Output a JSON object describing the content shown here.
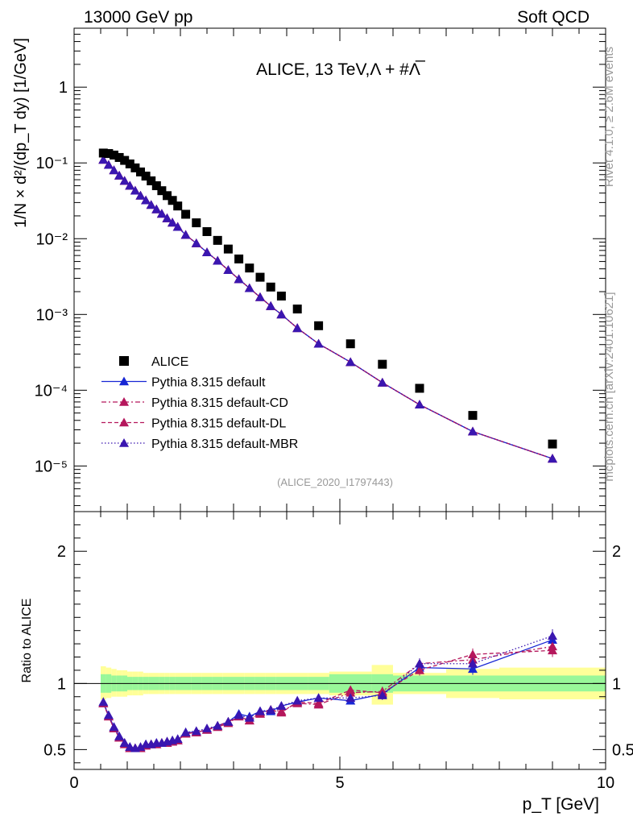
{
  "header": {
    "left": "13000 GeV pp",
    "right": "Soft QCD"
  },
  "chart_data": [
    {
      "type": "scatter",
      "title": "ALICE, 13 TeV,Λ + #Λ̅",
      "xlabel": "p_T [GeV]",
      "ylabel": "1/N × d²/(dp_T dy) [1/GeV]",
      "yscale": "log",
      "xlim": [
        0,
        10
      ],
      "ylim": [
        2.5e-06,
        6
      ],
      "ytick_labels": [
        "10⁻⁵",
        "10⁻⁴",
        "10⁻³",
        "10⁻²",
        "10⁻¹",
        "1"
      ],
      "ytick_values": [
        1e-05,
        0.0001,
        0.001,
        0.01,
        0.1,
        1
      ],
      "x": [
        0.55,
        0.65,
        0.75,
        0.85,
        0.95,
        1.05,
        1.15,
        1.25,
        1.35,
        1.45,
        1.55,
        1.65,
        1.75,
        1.85,
        1.95,
        2.1,
        2.3,
        2.5,
        2.7,
        2.9,
        3.1,
        3.3,
        3.5,
        3.7,
        3.9,
        4.2,
        4.6,
        5.2,
        5.8,
        6.5,
        7.5,
        9.0
      ],
      "series": [
        {
          "name": "ALICE",
          "style": "data",
          "color": "#000000",
          "values": [
            0.135,
            0.133,
            0.127,
            0.118,
            0.108,
            0.097,
            0.086,
            0.076,
            0.067,
            0.058,
            0.05,
            0.043,
            0.037,
            0.032,
            0.027,
            0.021,
            0.0162,
            0.0124,
            0.0095,
            0.0073,
            0.0054,
            0.0041,
            0.0031,
            0.0023,
            0.00175,
            0.00118,
            0.00071,
            0.00041,
            0.00022,
            0.000106,
            4.65e-05,
            1.95e-05
          ]
        },
        {
          "name": "Pythia 8.315 default",
          "style": "solid",
          "color": "#1726d4",
          "values": [
            0.11,
            0.094,
            0.08,
            0.068,
            0.058,
            0.05,
            0.043,
            0.037,
            0.032,
            0.0279,
            0.0244,
            0.0213,
            0.0186,
            0.0163,
            0.0143,
            0.0112,
            0.0087,
            0.0066,
            0.0051,
            0.00385,
            0.00292,
            0.00222,
            0.00169,
            0.00129,
            0.001,
            0.00066,
            0.00041,
            0.000235,
            0.000126,
            6.45e-05,
            2.85e-05,
            1.25e-05
          ]
        },
        {
          "name": "Pythia 8.315 default-CD",
          "style": "dashdot",
          "color": "#b5175c",
          "values": [
            0.11,
            0.094,
            0.08,
            0.068,
            0.058,
            0.05,
            0.043,
            0.037,
            0.032,
            0.0279,
            0.0244,
            0.0213,
            0.0186,
            0.0163,
            0.0143,
            0.0112,
            0.0087,
            0.0066,
            0.0051,
            0.00385,
            0.00292,
            0.00222,
            0.00169,
            0.00129,
            0.001,
            0.00066,
            0.00041,
            0.000235,
            0.000126,
            6.45e-05,
            2.85e-05,
            1.25e-05
          ]
        },
        {
          "name": "Pythia 8.315 default-DL",
          "style": "dashed",
          "color": "#b5175c",
          "values": [
            0.11,
            0.094,
            0.08,
            0.068,
            0.058,
            0.05,
            0.043,
            0.037,
            0.032,
            0.0279,
            0.0244,
            0.0213,
            0.0186,
            0.0163,
            0.0143,
            0.0112,
            0.0087,
            0.0066,
            0.0051,
            0.00385,
            0.00292,
            0.00222,
            0.00169,
            0.00129,
            0.001,
            0.00066,
            0.00041,
            0.000235,
            0.000126,
            6.45e-05,
            2.85e-05,
            1.25e-05
          ]
        },
        {
          "name": "Pythia 8.315 default-MBR",
          "style": "dotted",
          "color": "#3a16b0",
          "values": [
            0.11,
            0.094,
            0.08,
            0.068,
            0.058,
            0.05,
            0.043,
            0.037,
            0.032,
            0.0279,
            0.0244,
            0.0213,
            0.0186,
            0.0163,
            0.0143,
            0.0112,
            0.0087,
            0.0066,
            0.0051,
            0.00385,
            0.00292,
            0.00222,
            0.00169,
            0.00129,
            0.001,
            0.00066,
            0.00041,
            0.000235,
            0.000126,
            6.45e-05,
            2.85e-05,
            1.25e-05
          ]
        }
      ],
      "annotation": "(ALICE_2020_I1797443)"
    },
    {
      "type": "scatter",
      "ylabel": "Ratio to ALICE",
      "xlabel": "p_T [GeV]",
      "xlim": [
        0,
        10
      ],
      "ylim": [
        0.35,
        2.3
      ],
      "ytick_labels": [
        "0.5",
        "1",
        "2"
      ],
      "ytick_values": [
        0.5,
        1,
        2
      ],
      "xtick_labels": [
        "0",
        "5",
        "10"
      ],
      "xtick_values": [
        0,
        5,
        10
      ],
      "band_edges": [
        0.5,
        0.6,
        0.7,
        0.8,
        0.9,
        1.0,
        1.1,
        1.2,
        1.3,
        1.4,
        1.5,
        1.6,
        1.7,
        1.8,
        1.9,
        2.0,
        2.2,
        2.4,
        2.6,
        2.8,
        3.0,
        3.2,
        3.4,
        3.6,
        3.8,
        4.0,
        4.4,
        4.8,
        5.6,
        6.0,
        7.0,
        8.0,
        10.0
      ],
      "stat_band": [
        [
          0.93,
          1.07
        ],
        [
          0.93,
          1.07
        ],
        [
          0.94,
          1.06
        ],
        [
          0.94,
          1.06
        ],
        [
          0.94,
          1.06
        ],
        [
          0.95,
          1.05
        ],
        [
          0.95,
          1.05
        ],
        [
          0.95,
          1.05
        ],
        [
          0.95,
          1.05
        ],
        [
          0.95,
          1.05
        ],
        [
          0.95,
          1.05
        ],
        [
          0.95,
          1.05
        ],
        [
          0.95,
          1.05
        ],
        [
          0.95,
          1.05
        ],
        [
          0.95,
          1.05
        ],
        [
          0.95,
          1.05
        ],
        [
          0.95,
          1.05
        ],
        [
          0.95,
          1.05
        ],
        [
          0.95,
          1.05
        ],
        [
          0.95,
          1.05
        ],
        [
          0.95,
          1.05
        ],
        [
          0.95,
          1.05
        ],
        [
          0.95,
          1.05
        ],
        [
          0.95,
          1.05
        ],
        [
          0.95,
          1.05
        ],
        [
          0.95,
          1.05
        ],
        [
          0.95,
          1.05
        ],
        [
          0.93,
          1.07
        ],
        [
          0.93,
          1.07
        ],
        [
          0.94,
          1.06
        ],
        [
          0.94,
          1.06
        ],
        [
          0.94,
          1.06
        ]
      ],
      "syst_band": [
        [
          0.88,
          1.13
        ],
        [
          0.89,
          1.12
        ],
        [
          0.9,
          1.11
        ],
        [
          0.9,
          1.1
        ],
        [
          0.9,
          1.1
        ],
        [
          0.91,
          1.09
        ],
        [
          0.91,
          1.09
        ],
        [
          0.91,
          1.09
        ],
        [
          0.92,
          1.08
        ],
        [
          0.92,
          1.08
        ],
        [
          0.92,
          1.08
        ],
        [
          0.92,
          1.08
        ],
        [
          0.92,
          1.08
        ],
        [
          0.92,
          1.08
        ],
        [
          0.92,
          1.08
        ],
        [
          0.92,
          1.08
        ],
        [
          0.92,
          1.08
        ],
        [
          0.92,
          1.08
        ],
        [
          0.92,
          1.08
        ],
        [
          0.92,
          1.08
        ],
        [
          0.92,
          1.08
        ],
        [
          0.92,
          1.08
        ],
        [
          0.92,
          1.08
        ],
        [
          0.92,
          1.08
        ],
        [
          0.92,
          1.08
        ],
        [
          0.92,
          1.08
        ],
        [
          0.92,
          1.08
        ],
        [
          0.91,
          1.09
        ],
        [
          0.84,
          1.14
        ],
        [
          0.92,
          1.08
        ],
        [
          0.89,
          1.11
        ],
        [
          0.88,
          1.12
        ]
      ],
      "x": [
        0.55,
        0.65,
        0.75,
        0.85,
        0.95,
        1.05,
        1.15,
        1.25,
        1.35,
        1.45,
        1.55,
        1.65,
        1.75,
        1.85,
        1.95,
        2.1,
        2.3,
        2.5,
        2.7,
        2.9,
        3.1,
        3.3,
        3.5,
        3.7,
        3.9,
        4.2,
        4.6,
        5.2,
        5.8,
        6.5,
        7.5,
        9.0
      ],
      "series": [
        {
          "name": "Pythia 8.315 default",
          "style": "solid",
          "color": "#1726d4",
          "values": [
            0.85,
            0.76,
            0.67,
            0.6,
            0.55,
            0.52,
            0.51,
            0.51,
            0.54,
            0.54,
            0.55,
            0.55,
            0.56,
            0.56,
            0.57,
            0.63,
            0.63,
            0.65,
            0.68,
            0.71,
            0.77,
            0.75,
            0.79,
            0.79,
            0.83,
            0.86,
            0.89,
            0.87,
            0.92,
            1.12,
            1.11,
            1.33
          ]
        },
        {
          "name": "Pythia 8.315 default-CD",
          "style": "dashdot",
          "color": "#b5175c",
          "values": [
            0.85,
            0.75,
            0.66,
            0.59,
            0.55,
            0.51,
            0.51,
            0.51,
            0.53,
            0.54,
            0.54,
            0.55,
            0.56,
            0.56,
            0.57,
            0.62,
            0.63,
            0.65,
            0.68,
            0.71,
            0.75,
            0.72,
            0.77,
            0.8,
            0.79,
            0.85,
            0.84,
            0.93,
            0.94,
            1.15,
            1.18,
            1.28
          ]
        },
        {
          "name": "Pythia 8.315 default-DL",
          "style": "dashed",
          "color": "#b5175c",
          "values": [
            0.85,
            0.75,
            0.66,
            0.59,
            0.54,
            0.51,
            0.51,
            0.51,
            0.53,
            0.54,
            0.54,
            0.55,
            0.55,
            0.56,
            0.57,
            0.62,
            0.63,
            0.65,
            0.67,
            0.7,
            0.75,
            0.72,
            0.78,
            0.8,
            0.78,
            0.86,
            0.85,
            0.95,
            0.93,
            1.1,
            1.22,
            1.25
          ]
        },
        {
          "name": "Pythia 8.315 default-MBR",
          "style": "dotted",
          "color": "#3a16b0",
          "values": [
            0.86,
            0.76,
            0.67,
            0.6,
            0.55,
            0.52,
            0.51,
            0.52,
            0.54,
            0.54,
            0.55,
            0.55,
            0.56,
            0.57,
            0.58,
            0.63,
            0.64,
            0.66,
            0.68,
            0.71,
            0.76,
            0.74,
            0.79,
            0.8,
            0.83,
            0.87,
            0.89,
            0.89,
            0.91,
            1.15,
            1.15,
            1.36
          ]
        }
      ],
      "ratio_errors": [
        0.01,
        0.01,
        0.01,
        0.01,
        0.01,
        0.01,
        0.01,
        0.01,
        0.01,
        0.01,
        0.01,
        0.01,
        0.01,
        0.01,
        0.01,
        0.01,
        0.01,
        0.01,
        0.01,
        0.015,
        0.015,
        0.015,
        0.015,
        0.015,
        0.02,
        0.02,
        0.025,
        0.025,
        0.035,
        0.04,
        0.045,
        0.05
      ]
    }
  ],
  "legend": [
    {
      "label": "ALICE",
      "marker": "square",
      "color": "#000000"
    },
    {
      "label": "Pythia 8.315 default",
      "marker": "triangle",
      "color": "#1726d4",
      "line": "solid"
    },
    {
      "label": "Pythia 8.315 default-CD",
      "marker": "triangle",
      "color": "#b5175c",
      "line": "dashdot"
    },
    {
      "label": "Pythia 8.315 default-DL",
      "marker": "triangle",
      "color": "#b5175c",
      "line": "dashed"
    },
    {
      "label": "Pythia 8.315 default-MBR",
      "marker": "triangle",
      "color": "#3a16b0",
      "line": "dotted"
    }
  ],
  "side_text": {
    "rivet": "Rivet 4.1.0, ≥ 2.6M events",
    "mcplots": "mcplots.cern.ch [arXiv:2401.10621]"
  },
  "colors": {
    "stat": "#99f799",
    "syst": "#ffff99"
  }
}
